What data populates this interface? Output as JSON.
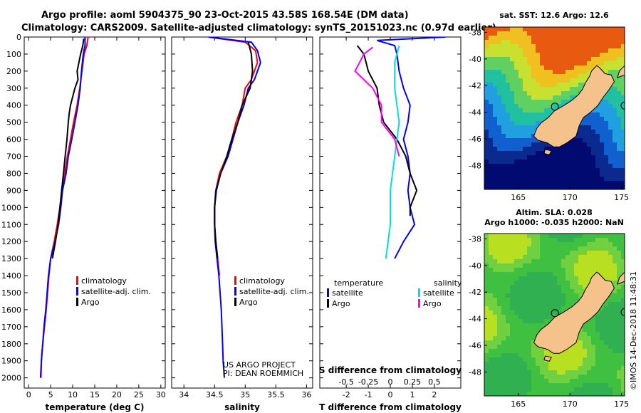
{
  "title": {
    "line1": "Argo profile: aoml 5904375_90 23-Oct-2015 43.58S 168.54E (DM data)",
    "line2": "Climatology: CARS2009. Satellite-adjusted climatology: synTS_20151023.nc (0.97d earlier)"
  },
  "credit": "©IMOS 14-Dec-2018 11:48:31",
  "colors": {
    "climatology": "#ff0000",
    "satellite": "#0000ff",
    "argo": "#000000",
    "salinity_sat": "#00e0e0",
    "salinity_argo": "#ff00ff",
    "land": "#f5c28c"
  },
  "chart_data": [
    {
      "type": "line",
      "id": "temperature",
      "xlabel": "temperature (deg C)",
      "xlim": [
        -1,
        31
      ],
      "ylim": [
        2060,
        0
      ],
      "xticks": [
        "0",
        "5",
        "10",
        "15",
        "20",
        "25",
        "30"
      ],
      "yticks": [
        "0",
        "100",
        "200",
        "300",
        "400",
        "500",
        "600",
        "700",
        "800",
        "900",
        "1000",
        "1100",
        "1200",
        "1300",
        "1400",
        "1500",
        "1600",
        "1700",
        "1800",
        "1900",
        "2000"
      ],
      "legend": [
        "climatology",
        "satellite-adj. clim.",
        "Argo"
      ],
      "series": [
        {
          "name": "climatology",
          "color": "#ff0000",
          "points": [
            [
              13.5,
              0
            ],
            [
              13.2,
              50
            ],
            [
              12.6,
              100
            ],
            [
              12.1,
              200
            ],
            [
              11.6,
              300
            ],
            [
              11.0,
              400
            ],
            [
              10.2,
              500
            ],
            [
              9.5,
              600
            ],
            [
              8.8,
              700
            ],
            [
              8.2,
              800
            ],
            [
              7.6,
              900
            ],
            [
              7.1,
              1000
            ],
            [
              6.5,
              1100
            ],
            [
              5.8,
              1200
            ],
            [
              5.0,
              1300
            ],
            [
              4.6,
              1400
            ],
            [
              4.3,
              1500
            ],
            [
              4.0,
              1600
            ],
            [
              3.6,
              1700
            ],
            [
              3.2,
              1800
            ],
            [
              2.9,
              1900
            ],
            [
              2.8,
              2000
            ]
          ]
        },
        {
          "name": "satellite-adj. clim.",
          "color": "#0000ff",
          "points": [
            [
              12.8,
              0
            ],
            [
              12.8,
              50
            ],
            [
              12.4,
              100
            ],
            [
              12.0,
              200
            ],
            [
              11.7,
              300
            ],
            [
              11.2,
              400
            ],
            [
              10.5,
              500
            ],
            [
              9.8,
              600
            ],
            [
              9.0,
              700
            ],
            [
              8.5,
              800
            ],
            [
              7.7,
              900
            ],
            [
              7.3,
              1000
            ],
            [
              6.8,
              1100
            ],
            [
              6.0,
              1200
            ],
            [
              5.0,
              1300
            ],
            [
              4.5,
              1400
            ],
            [
              4.2,
              1500
            ],
            [
              3.9,
              1600
            ],
            [
              3.5,
              1700
            ],
            [
              3.2,
              1800
            ],
            [
              2.9,
              1900
            ],
            [
              2.7,
              2000
            ]
          ]
        },
        {
          "name": "Argo",
          "color": "#000000",
          "points": [
            [
              12.5,
              10
            ],
            [
              12.3,
              50
            ],
            [
              11.8,
              100
            ],
            [
              11.0,
              200
            ],
            [
              11.2,
              250
            ],
            [
              10.5,
              300
            ],
            [
              10.0,
              350
            ],
            [
              9.5,
              400
            ],
            [
              9.2,
              450
            ],
            [
              9.0,
              500
            ],
            [
              8.7,
              600
            ],
            [
              8.3,
              700
            ],
            [
              7.9,
              800
            ],
            [
              7.5,
              900
            ],
            [
              7.1,
              1000
            ],
            [
              6.7,
              1100
            ],
            [
              6.1,
              1200
            ],
            [
              5.4,
              1300
            ]
          ]
        }
      ]
    },
    {
      "type": "line",
      "id": "salinity",
      "xlabel": "salinity",
      "xlim": [
        33.8,
        36.1
      ],
      "ylim": [
        2060,
        0
      ],
      "xticks": [
        "34",
        "34.5",
        "35",
        "35.5",
        "36"
      ],
      "legend": [
        "climatology",
        "satellite-adj. clim.",
        "Argo"
      ],
      "annotation": [
        "US ARGO PROJECT",
        "PI: DEAN ROEMMICH"
      ],
      "series": [
        {
          "name": "climatology",
          "color": "#ff0000",
          "points": [
            [
              34.4,
              0
            ],
            [
              35.0,
              30
            ],
            [
              35.17,
              80
            ],
            [
              35.2,
              150
            ],
            [
              35.1,
              250
            ],
            [
              35.0,
              300
            ],
            [
              34.95,
              400
            ],
            [
              34.85,
              500
            ],
            [
              34.78,
              600
            ],
            [
              34.7,
              700
            ],
            [
              34.58,
              800
            ],
            [
              34.52,
              900
            ],
            [
              34.5,
              1000
            ],
            [
              34.5,
              1100
            ],
            [
              34.52,
              1200
            ],
            [
              34.55,
              1300
            ],
            [
              34.58,
              1400
            ]
          ]
        },
        {
          "name": "satellite-adj. clim.",
          "color": "#0000ff",
          "points": [
            [
              34.4,
              0
            ],
            [
              35.1,
              30
            ],
            [
              35.2,
              80
            ],
            [
              35.25,
              150
            ],
            [
              35.15,
              250
            ],
            [
              35.05,
              300
            ],
            [
              34.98,
              400
            ],
            [
              34.88,
              500
            ],
            [
              34.8,
              600
            ],
            [
              34.72,
              700
            ],
            [
              34.6,
              800
            ],
            [
              34.52,
              900
            ],
            [
              34.5,
              1000
            ],
            [
              34.5,
              1100
            ],
            [
              34.51,
              1200
            ],
            [
              34.54,
              1300
            ],
            [
              34.57,
              1400
            ],
            [
              34.59,
              1500
            ],
            [
              34.61,
              1600
            ],
            [
              34.62,
              1700
            ],
            [
              34.63,
              1800
            ],
            [
              34.64,
              1900
            ],
            [
              34.66,
              2000
            ]
          ]
        },
        {
          "name": "Argo",
          "color": "#000000",
          "points": [
            [
              35.05,
              30
            ],
            [
              35.1,
              100
            ],
            [
              35.12,
              200
            ],
            [
              35.08,
              300
            ],
            [
              34.95,
              400
            ],
            [
              34.88,
              500
            ],
            [
              34.78,
              600
            ],
            [
              34.7,
              700
            ],
            [
              34.6,
              800
            ],
            [
              34.53,
              900
            ],
            [
              34.5,
              1000
            ],
            [
              34.5,
              1100
            ],
            [
              34.52,
              1200
            ],
            [
              34.55,
              1300
            ]
          ]
        }
      ]
    },
    {
      "type": "line",
      "id": "difference",
      "xlabel": "T difference from climatology",
      "xlabel_top": "S difference from climatology",
      "xlim": [
        -3.2,
        3.2
      ],
      "ylim": [
        2060,
        0
      ],
      "xticks": [
        "-2",
        "-1",
        "0",
        "1",
        "2"
      ],
      "xticks_top": [
        "-0.5",
        "-0.25",
        "0",
        "0.25",
        "0.5"
      ],
      "legend": {
        "left_title": "temperature",
        "right_title": "salinity",
        "left": [
          "satellite",
          "Argo"
        ],
        "right": [
          "satellite",
          "Argo"
        ]
      },
      "series": [
        {
          "name": "temperature satellite",
          "color": "#0000ff",
          "points": [
            [
              2.5,
              0
            ],
            [
              -0.6,
              20
            ],
            [
              0.2,
              50
            ],
            [
              0.3,
              100
            ],
            [
              0.4,
              200
            ],
            [
              0.6,
              300
            ],
            [
              0.9,
              400
            ],
            [
              0.8,
              500
            ],
            [
              0.6,
              600
            ],
            [
              0.8,
              700
            ],
            [
              0.9,
              800
            ],
            [
              0.8,
              900
            ],
            [
              0.9,
              1000
            ],
            [
              1.1,
              1100
            ],
            [
              0.6,
              1200
            ],
            [
              0.2,
              1300
            ]
          ]
        },
        {
          "name": "temperature Argo",
          "color": "#000000",
          "points": [
            [
              -1.5,
              50
            ],
            [
              -1.2,
              100
            ],
            [
              -1.0,
              200
            ],
            [
              -0.6,
              300
            ],
            [
              -0.5,
              400
            ],
            [
              -0.3,
              500
            ],
            [
              0.3,
              600
            ],
            [
              0.7,
              700
            ],
            [
              0.9,
              800
            ],
            [
              1.2,
              900
            ],
            [
              0.9,
              1000
            ],
            [
              0.9,
              1050
            ]
          ]
        },
        {
          "name": "salinity satellite",
          "color": "#00e0e0",
          "points": [
            [
              0.1,
              50
            ],
            [
              0.05,
              150
            ],
            [
              0.05,
              300
            ],
            [
              0.1,
              500
            ],
            [
              0.05,
              700
            ],
            [
              0.0,
              900
            ],
            [
              0.0,
              1100
            ],
            [
              -0.05,
              1300
            ]
          ]
        },
        {
          "name": "salinity Argo",
          "color": "#ff00ff",
          "points": [
            [
              -0.2,
              60
            ],
            [
              -0.3,
              100
            ],
            [
              -0.4,
              200
            ],
            [
              -0.2,
              300
            ],
            [
              -0.1,
              400
            ],
            [
              -0.1,
              500
            ],
            [
              0.05,
              600
            ],
            [
              0.1,
              700
            ]
          ]
        }
      ]
    }
  ],
  "maps": {
    "sst": {
      "title": "sat. SST: 12.6 Argo: 12.6",
      "xticks": [
        "165",
        "170",
        "175"
      ],
      "yticks": [
        "-38",
        "-40",
        "-42",
        "-44",
        "-46",
        "-48"
      ]
    },
    "sla": {
      "title1": "Altim. SLA: 0.028",
      "title2": "Argo h1000: -0.035 h2000: NaN",
      "xticks": [
        "165",
        "170",
        "175"
      ],
      "yticks": [
        "-38",
        "-40",
        "-42",
        "-44",
        "-46",
        "-48"
      ]
    }
  }
}
